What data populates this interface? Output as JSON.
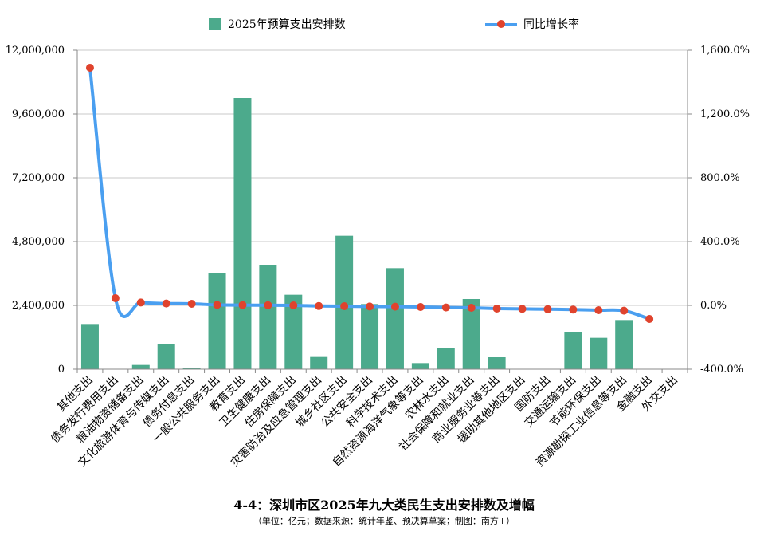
{
  "chart_data": {
    "type": "bar",
    "title": "4-4：深圳市区2025年九大类民生支出安排数及增幅",
    "subtitle": "（单位：亿元；数据来源：统计年鉴、预决算草案；制图：南方+）",
    "categories": [
      "其他支出",
      "债务发行费用支出",
      "粮油物资储备支出",
      "文化旅游体育与传媒支出",
      "债务付息支出",
      "一般公共服务支出",
      "教育支出",
      "卫生健康支出",
      "住房保障支出",
      "灾害防治及应急管理支出",
      "城乡社区支出",
      "公共安全支出",
      "科学技术支出",
      "自然资源海洋气象等支出",
      "农林水支出",
      "社会保障和就业支出",
      "商业服务业等支出",
      "援助其他地区支出",
      "国防支出",
      "交通运输支出",
      "节能环保支出",
      "资源勘探工业信息等支出",
      "金融支出",
      "外交支出"
    ],
    "series": [
      {
        "name": "2025年预算支出安排数",
        "type": "bar",
        "axis": "left",
        "values": [
          1700000,
          0,
          160000,
          950000,
          30000,
          3600000,
          10200000,
          3930000,
          2800000,
          460000,
          5020000,
          2450000,
          3800000,
          230000,
          800000,
          2640000,
          450000,
          0,
          0,
          1400000,
          1180000,
          1850000,
          0,
          0
        ]
      },
      {
        "name": "同比增长率",
        "type": "line",
        "axis": "right",
        "values": [
          1490,
          45,
          18,
          12,
          10,
          3,
          2,
          1,
          0,
          -4,
          -5,
          -7,
          -8,
          -10,
          -13,
          -15,
          -20,
          -22,
          -24,
          -26,
          -30,
          -33,
          -85,
          null
        ]
      }
    ],
    "y_left": {
      "ylim": [
        0,
        12000000
      ],
      "ticks": [
        "0",
        "2,400,000",
        "4,800,000",
        "7,200,000",
        "9,600,000",
        "12,000,000"
      ]
    },
    "y_right": {
      "ylim": [
        -400,
        1600
      ],
      "ticks": [
        "-400.0%",
        "0.0%",
        "400.0%",
        "800.0%",
        "1,200.0%",
        "1,600.0%"
      ]
    },
    "grid": true,
    "legend": "top",
    "colors": {
      "bar": "#4caa8c",
      "line": "#4a9ff0",
      "marker": "#e0432d",
      "grid": "#c8c8c8",
      "axis": "#888888"
    }
  }
}
